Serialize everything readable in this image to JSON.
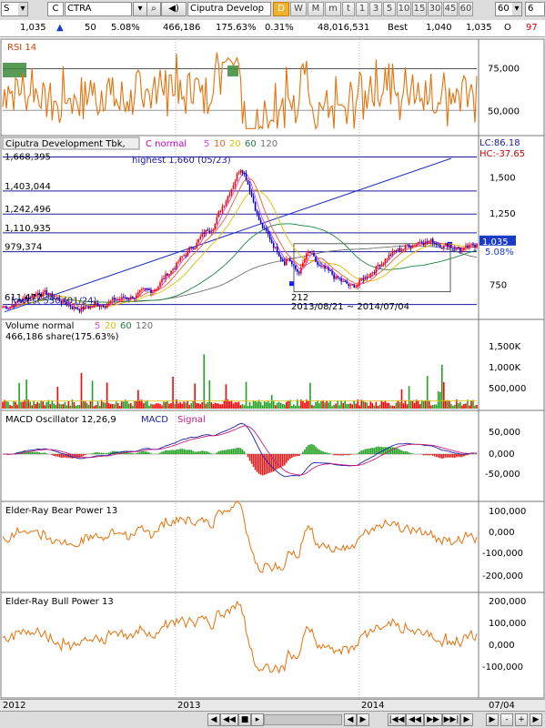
{
  "toolbar": {
    "market_code": "S",
    "market_label": "C",
    "ticker": "CTRA",
    "company": "Ciputra Develop",
    "timeframes": [
      {
        "label": "D",
        "active": true
      },
      {
        "label": "W",
        "active": false
      },
      {
        "label": "M",
        "active": false
      },
      {
        "label": "m",
        "active": false
      },
      {
        "label": "t",
        "active": false
      },
      {
        "label": "1",
        "active": false
      },
      {
        "label": "3",
        "active": false
      },
      {
        "label": "5",
        "active": false
      },
      {
        "label": "10",
        "active": false
      },
      {
        "label": "15",
        "active": false
      },
      {
        "label": "30",
        "active": false
      },
      {
        "label": "45",
        "active": false
      },
      {
        "label": "60",
        "active": false
      }
    ],
    "period_value": "60",
    "page_value": "6"
  },
  "quote": {
    "price": "1,035",
    "change_arrow": "▲",
    "change": "50",
    "change_pct": "5.08%",
    "volume": "466,186",
    "volume_pct": "175.63%",
    "turnover_pct": "0.31%",
    "amount": "48,016,531",
    "best_label": "Best",
    "bid": "1,040",
    "ask": "1,035",
    "o_label": "O",
    "open": "97"
  },
  "panels": {
    "rsi": {
      "title": "RSI 14",
      "ticks": [
        "75,000",
        "50,000"
      ]
    },
    "price": {
      "title": "Ciputra Development Tbk,",
      "ma_prefix": "C normal",
      "ma_periods": [
        "5",
        "10",
        "20",
        "60",
        "120"
      ],
      "lc": "LC:86.18",
      "hc": "HC:-37.65",
      "top_label": "1,668,395",
      "highest": "highest 1,660 (05/23)",
      "lowest": "lowest 550 (01/24)",
      "levels": [
        "1,403,044",
        "1,242,496",
        "1,110,935",
        "979,374"
      ],
      "low_level": "611,477",
      "ticks": [
        "1,500",
        "1,250",
        "750"
      ],
      "current_price": "1,035",
      "current_pct": "5.08%",
      "box_count": "212",
      "box_range": "2013/08/21 ~ 2014/07/04"
    },
    "volume": {
      "title_prefix": "Volume  normal",
      "ma_periods": [
        "5",
        "20",
        "60",
        "120"
      ],
      "subtitle": "466,186 share(175.63%)",
      "ticks": [
        "1,500K",
        "1,000K",
        "500,000"
      ]
    },
    "macd": {
      "title": "MACD Oscillator 12,26,9",
      "legend_macd": "MACD",
      "legend_signal": "Signal",
      "ticks": [
        "50,000",
        "0,000",
        "-50,000"
      ]
    },
    "bear": {
      "title": "Elder-Ray Bear Power 13",
      "ticks": [
        "100,000",
        "0,000",
        "-100,000",
        "-200,000"
      ]
    },
    "bull": {
      "title": "Elder-Ray Bull Power 13",
      "ticks": [
        "200,000",
        "100,000",
        "0,000",
        "-100,000"
      ]
    }
  },
  "xaxis": {
    "labels": [
      "2012",
      "2013",
      "2014",
      "07/04"
    ]
  },
  "nav": {
    "buttons": [
      "◀",
      "|◀◀",
      "◀◀",
      "■",
      "▶▶",
      "▶▶|",
      "▶"
    ],
    "right_buttons": [
      "◀",
      "▶",
      "-",
      "+",
      "▶"
    ]
  },
  "colors": {
    "rsi_line": "#e8700a",
    "ma5": "#e040e0",
    "ma10": "#f06030",
    "ma20": "#e0c000",
    "ma60": "#208040",
    "ma120": "#707070",
    "candle_up": "#ff0000",
    "candle_down": "#0000cc",
    "level": "#1a1aa0",
    "macd_pos": "#20a020",
    "macd_neg": "#e02020"
  }
}
